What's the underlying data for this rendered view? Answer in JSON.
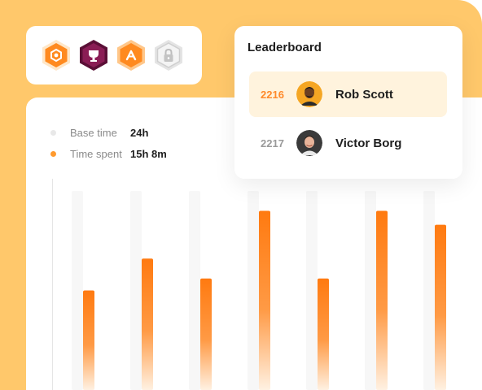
{
  "badges": [
    {
      "icon": "settings-badge-icon",
      "color": "#FF8A1F"
    },
    {
      "icon": "trophy-badge-icon",
      "color": "#8A1D55"
    },
    {
      "icon": "rank-badge-icon",
      "color": "#FF8A1F"
    },
    {
      "icon": "locked-badge-icon",
      "color": "#D3D3D3"
    }
  ],
  "legend": {
    "base_label": "Base time",
    "base_value": "24h",
    "spent_label": "Time spent",
    "spent_value": "15h 8m"
  },
  "chart_data": {
    "type": "bar",
    "categories": [
      "",
      "",
      "",
      "",
      "",
      "",
      ""
    ],
    "series": [
      {
        "name": "Base time",
        "values": [
          100,
          100,
          100,
          100,
          100,
          100,
          100
        ]
      },
      {
        "name": "Time spent",
        "values": [
          50,
          66,
          56,
          90,
          56,
          90,
          83
        ]
      }
    ],
    "ylim": [
      0,
      100
    ],
    "colors": {
      "base": "#F7F7F7",
      "spent": "#FF7A10"
    }
  },
  "leaderboard": {
    "title": "Leaderboard",
    "entries": [
      {
        "rank": "2216",
        "name": "Rob Scott"
      },
      {
        "rank": "2217",
        "name": "Victor Borg"
      }
    ]
  },
  "colors": {
    "background": "#FFC86B",
    "accent": "#FF8A2B"
  }
}
